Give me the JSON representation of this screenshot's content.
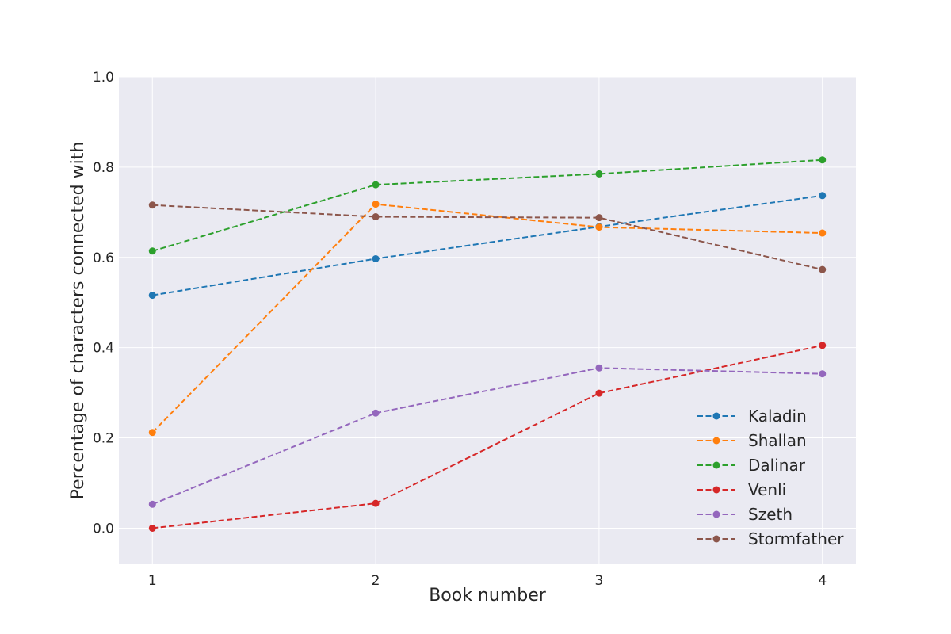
{
  "chart_data": {
    "type": "line",
    "title": "",
    "xlabel": "Book number",
    "ylabel": "Percentage of characters connected with",
    "x": [
      1,
      2,
      3,
      4
    ],
    "x_ticks": [
      1,
      2,
      3,
      4
    ],
    "xlim": [
      0.85,
      4.15
    ],
    "y_ticks": [
      0.0,
      0.2,
      0.4,
      0.6,
      0.8,
      1.0
    ],
    "y_tick_labels": [
      "0.0",
      "0.2",
      "0.4",
      "0.6",
      "0.8",
      "1.0"
    ],
    "ylim": [
      -0.08,
      1.0
    ],
    "grid": true,
    "line_style": "dashed",
    "markers": "circle",
    "legend_position": "lower-right",
    "background": "#eaeaf2",
    "series": [
      {
        "name": "Kaladin",
        "color": "#1f77b4",
        "values": [
          0.516,
          0.597,
          0.668,
          0.737
        ]
      },
      {
        "name": "Shallan",
        "color": "#ff7f0e",
        "values": [
          0.212,
          0.718,
          0.667,
          0.654
        ]
      },
      {
        "name": "Dalinar",
        "color": "#2ca02c",
        "values": [
          0.614,
          0.761,
          0.785,
          0.816
        ]
      },
      {
        "name": "Venli",
        "color": "#d62728",
        "values": [
          0.0,
          0.055,
          0.299,
          0.405
        ]
      },
      {
        "name": "Szeth",
        "color": "#9467bd",
        "values": [
          0.053,
          0.255,
          0.355,
          0.342
        ]
      },
      {
        "name": "Stormfather",
        "color": "#8c564b",
        "values": [
          0.716,
          0.69,
          0.688,
          0.573
        ]
      }
    ]
  }
}
